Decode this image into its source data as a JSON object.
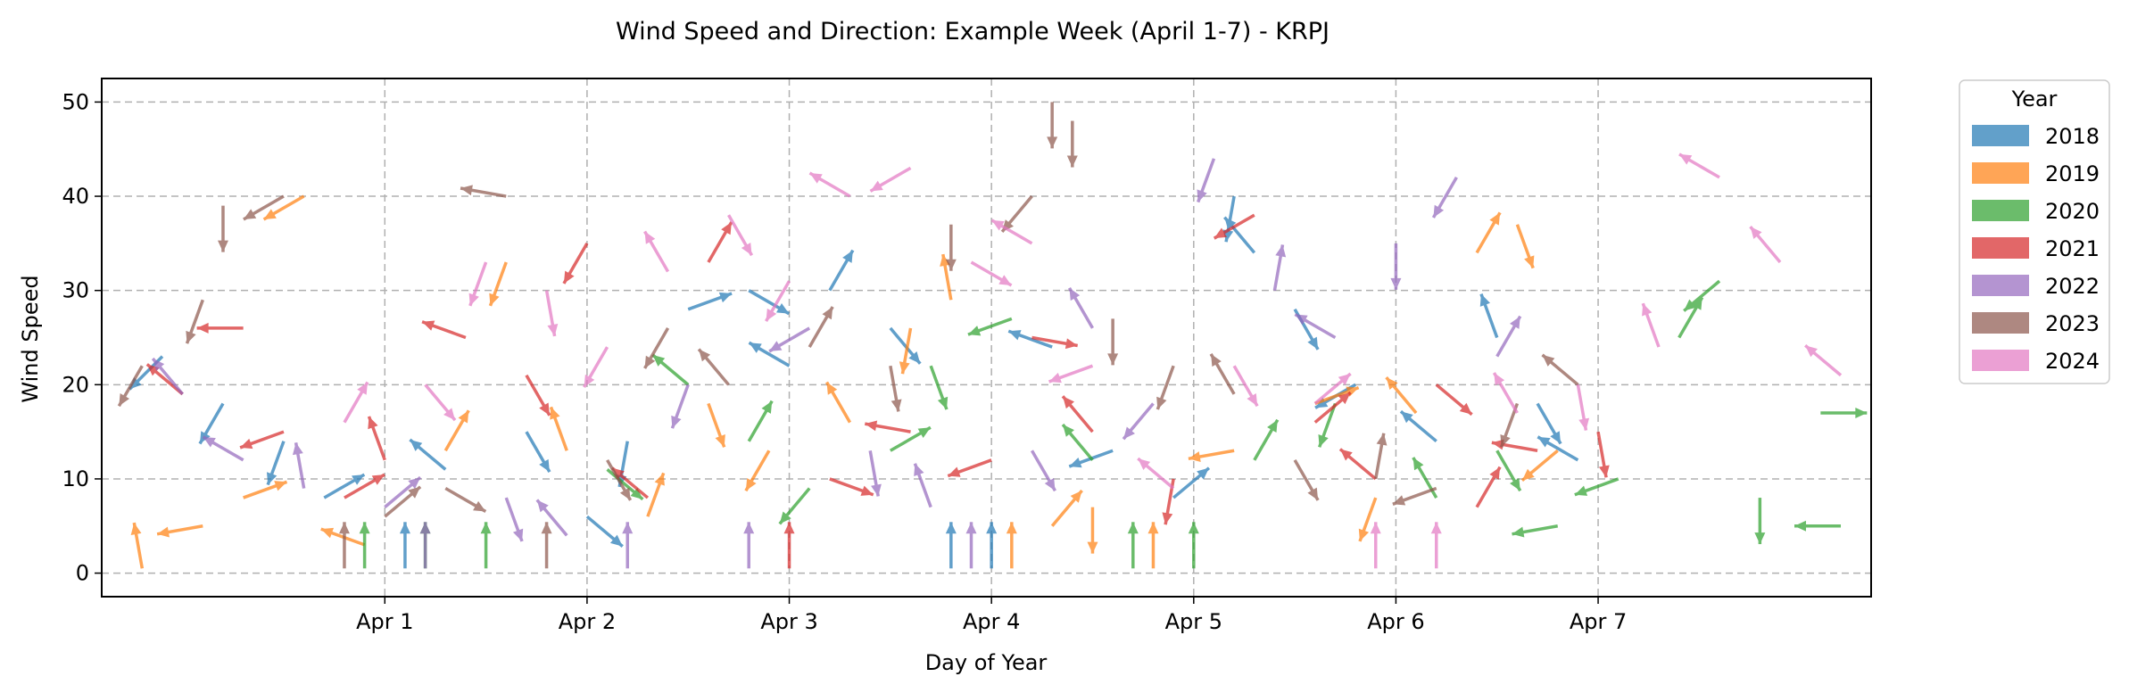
{
  "chart_data": {
    "type": "quiver",
    "title": "Wind Speed and Direction: Example Week (April 1-7) - KRPJ",
    "xlabel": "Day of Year",
    "ylabel": "Wind Speed",
    "x_ticks": [
      "Apr 1",
      "Apr 2",
      "Apr 3",
      "Apr 4",
      "Apr 5",
      "Apr 6",
      "Apr 7"
    ],
    "x_tick_positions": [
      1,
      2,
      3,
      4,
      5,
      6,
      7
    ],
    "xlim": [
      -0.4,
      8.35
    ],
    "ylim": [
      -2.5,
      52.5
    ],
    "y_ticks": [
      0,
      10,
      20,
      30,
      40,
      50
    ],
    "grid": true,
    "legend": {
      "title": "Year",
      "placement": "outside-right",
      "entries": [
        "2018",
        "2019",
        "2020",
        "2021",
        "2022",
        "2023",
        "2024"
      ]
    },
    "colors": {
      "2018": "#1f77b4",
      "2019": "#ff7f0e",
      "2020": "#2ca02c",
      "2021": "#d62728",
      "2022": "#9467bd",
      "2023": "#8c564b",
      "2024": "#e377c2"
    },
    "series": [
      {
        "name": "2018",
        "points": [
          [
            -0.1,
            23,
            225
          ],
          [
            0.2,
            18,
            240
          ],
          [
            0.5,
            14,
            250
          ],
          [
            0.7,
            8,
            30
          ],
          [
            1.1,
            0.5,
            90
          ],
          [
            1.3,
            11,
            140
          ],
          [
            1.7,
            15,
            300
          ],
          [
            2.0,
            6,
            320
          ],
          [
            2.2,
            14,
            260
          ],
          [
            2.5,
            28,
            20
          ],
          [
            2.8,
            30,
            330
          ],
          [
            3.0,
            22,
            150
          ],
          [
            3.2,
            30,
            60
          ],
          [
            3.5,
            26,
            310
          ],
          [
            3.8,
            0.5,
            90
          ],
          [
            4.0,
            0.5,
            90
          ],
          [
            4.3,
            24,
            160
          ],
          [
            4.6,
            13,
            200
          ],
          [
            4.9,
            8,
            40
          ],
          [
            5.2,
            40,
            260
          ],
          [
            5.3,
            34,
            130
          ],
          [
            5.5,
            28,
            300
          ],
          [
            5.8,
            20,
            210
          ],
          [
            6.2,
            14,
            140
          ],
          [
            6.5,
            25,
            110
          ],
          [
            6.7,
            18,
            300
          ],
          [
            6.9,
            12,
            150
          ]
        ]
      },
      {
        "name": "2019",
        "points": [
          [
            -0.2,
            0.5,
            100
          ],
          [
            0.1,
            5,
            190
          ],
          [
            0.3,
            8,
            20
          ],
          [
            0.6,
            40,
            210
          ],
          [
            0.9,
            3,
            160
          ],
          [
            1.3,
            13,
            60
          ],
          [
            1.6,
            33,
            250
          ],
          [
            1.9,
            13,
            110
          ],
          [
            2.3,
            6,
            70
          ],
          [
            2.6,
            18,
            290
          ],
          [
            2.9,
            13,
            240
          ],
          [
            3.3,
            16,
            120
          ],
          [
            3.6,
            26,
            260
          ],
          [
            3.8,
            29,
            100
          ],
          [
            4.1,
            0.5,
            90
          ],
          [
            4.3,
            5,
            50
          ],
          [
            4.5,
            7,
            270
          ],
          [
            4.8,
            0.5,
            90
          ],
          [
            5.2,
            13,
            190
          ],
          [
            5.6,
            18,
            20
          ],
          [
            5.9,
            8,
            250
          ],
          [
            6.1,
            17,
            130
          ],
          [
            6.4,
            34,
            60
          ],
          [
            6.6,
            37,
            290
          ],
          [
            6.8,
            13,
            220
          ]
        ]
      },
      {
        "name": "2020",
        "points": [
          [
            0.9,
            0.5,
            90
          ],
          [
            1.2,
            0.5,
            90
          ],
          [
            1.5,
            0.5,
            90
          ],
          [
            2.1,
            11,
            320
          ],
          [
            2.5,
            20,
            140
          ],
          [
            2.8,
            14,
            60
          ],
          [
            3.1,
            9,
            230
          ],
          [
            3.5,
            13,
            30
          ],
          [
            3.7,
            22,
            290
          ],
          [
            4.1,
            27,
            200
          ],
          [
            4.5,
            12,
            130
          ],
          [
            4.7,
            0.5,
            90
          ],
          [
            5.0,
            0.5,
            90
          ],
          [
            5.3,
            12,
            60
          ],
          [
            5.7,
            18,
            250
          ],
          [
            6.2,
            8,
            120
          ],
          [
            6.5,
            13,
            300
          ],
          [
            6.8,
            5,
            190
          ],
          [
            7.1,
            10,
            200
          ],
          [
            7.4,
            25,
            60
          ],
          [
            7.6,
            31,
            220
          ],
          [
            7.8,
            8,
            270
          ],
          [
            8.1,
            17,
            0
          ],
          [
            8.2,
            5,
            180
          ]
        ]
      },
      {
        "name": "2021",
        "points": [
          [
            0.0,
            19,
            140
          ],
          [
            0.3,
            26,
            180
          ],
          [
            0.5,
            15,
            200
          ],
          [
            0.8,
            8,
            30
          ],
          [
            1.0,
            12,
            110
          ],
          [
            1.4,
            25,
            160
          ],
          [
            1.7,
            21,
            300
          ],
          [
            2.0,
            35,
            240
          ],
          [
            2.3,
            8,
            140
          ],
          [
            2.6,
            33,
            60
          ],
          [
            3.0,
            0.5,
            90
          ],
          [
            3.2,
            10,
            340
          ],
          [
            3.6,
            15,
            170
          ],
          [
            4.0,
            12,
            200
          ],
          [
            4.2,
            25,
            350
          ],
          [
            4.5,
            15,
            130
          ],
          [
            4.9,
            10,
            260
          ],
          [
            5.3,
            38,
            210
          ],
          [
            5.6,
            16,
            40
          ],
          [
            5.9,
            10,
            140
          ],
          [
            6.2,
            20,
            320
          ],
          [
            6.4,
            7,
            60
          ],
          [
            6.7,
            13,
            170
          ],
          [
            7.0,
            15,
            280
          ]
        ]
      },
      {
        "name": "2022",
        "points": [
          [
            0.0,
            19,
            130
          ],
          [
            0.3,
            12,
            150
          ],
          [
            0.6,
            9,
            100
          ],
          [
            1.0,
            7,
            40
          ],
          [
            1.2,
            0.5,
            90
          ],
          [
            1.6,
            8,
            290
          ],
          [
            1.9,
            4,
            130
          ],
          [
            2.2,
            0.5,
            90
          ],
          [
            2.5,
            20,
            250
          ],
          [
            2.8,
            0.5,
            90
          ],
          [
            3.1,
            26,
            210
          ],
          [
            3.4,
            13,
            280
          ],
          [
            3.7,
            7,
            110
          ],
          [
            3.9,
            0.5,
            90
          ],
          [
            4.2,
            13,
            300
          ],
          [
            4.5,
            26,
            120
          ],
          [
            4.8,
            18,
            230
          ],
          [
            5.1,
            44,
            250
          ],
          [
            5.4,
            30,
            80
          ],
          [
            5.7,
            25,
            150
          ],
          [
            6.0,
            35,
            270
          ],
          [
            6.3,
            42,
            240
          ],
          [
            6.5,
            23,
            60
          ]
        ]
      },
      {
        "name": "2023",
        "points": [
          [
            -0.2,
            22,
            240
          ],
          [
            0.1,
            29,
            250
          ],
          [
            0.2,
            39,
            270
          ],
          [
            0.5,
            40,
            210
          ],
          [
            0.8,
            0.5,
            90
          ],
          [
            1.0,
            6,
            40
          ],
          [
            1.3,
            9,
            330
          ],
          [
            1.6,
            40,
            170
          ],
          [
            1.8,
            0.5,
            90
          ],
          [
            2.1,
            12,
            300
          ],
          [
            2.4,
            26,
            240
          ],
          [
            2.7,
            20,
            130
          ],
          [
            3.1,
            24,
            60
          ],
          [
            3.5,
            22,
            280
          ],
          [
            3.8,
            37,
            270
          ],
          [
            4.2,
            40,
            230
          ],
          [
            4.3,
            50,
            270
          ],
          [
            4.4,
            48,
            270
          ],
          [
            4.6,
            27,
            270
          ],
          [
            4.9,
            22,
            250
          ],
          [
            5.2,
            19,
            120
          ],
          [
            5.5,
            12,
            300
          ],
          [
            5.9,
            10,
            80
          ],
          [
            6.2,
            9,
            200
          ],
          [
            6.6,
            18,
            250
          ],
          [
            6.9,
            20,
            140
          ]
        ]
      },
      {
        "name": "2024",
        "points": [
          [
            0.8,
            16,
            60
          ],
          [
            1.2,
            20,
            310
          ],
          [
            1.5,
            33,
            250
          ],
          [
            1.8,
            30,
            280
          ],
          [
            2.1,
            24,
            240
          ],
          [
            2.4,
            32,
            120
          ],
          [
            2.7,
            38,
            300
          ],
          [
            3.0,
            31,
            240
          ],
          [
            3.3,
            40,
            150
          ],
          [
            3.6,
            43,
            210
          ],
          [
            3.9,
            33,
            330
          ],
          [
            4.2,
            35,
            150
          ],
          [
            4.5,
            22,
            200
          ],
          [
            4.9,
            9,
            140
          ],
          [
            5.2,
            22,
            300
          ],
          [
            5.6,
            18,
            40
          ],
          [
            5.9,
            0.5,
            90
          ],
          [
            6.2,
            0.5,
            90
          ],
          [
            6.6,
            17,
            120
          ],
          [
            6.9,
            20,
            280
          ],
          [
            7.3,
            24,
            110
          ],
          [
            7.6,
            42,
            150
          ],
          [
            7.9,
            33,
            130
          ],
          [
            8.2,
            21,
            140
          ]
        ]
      }
    ]
  }
}
